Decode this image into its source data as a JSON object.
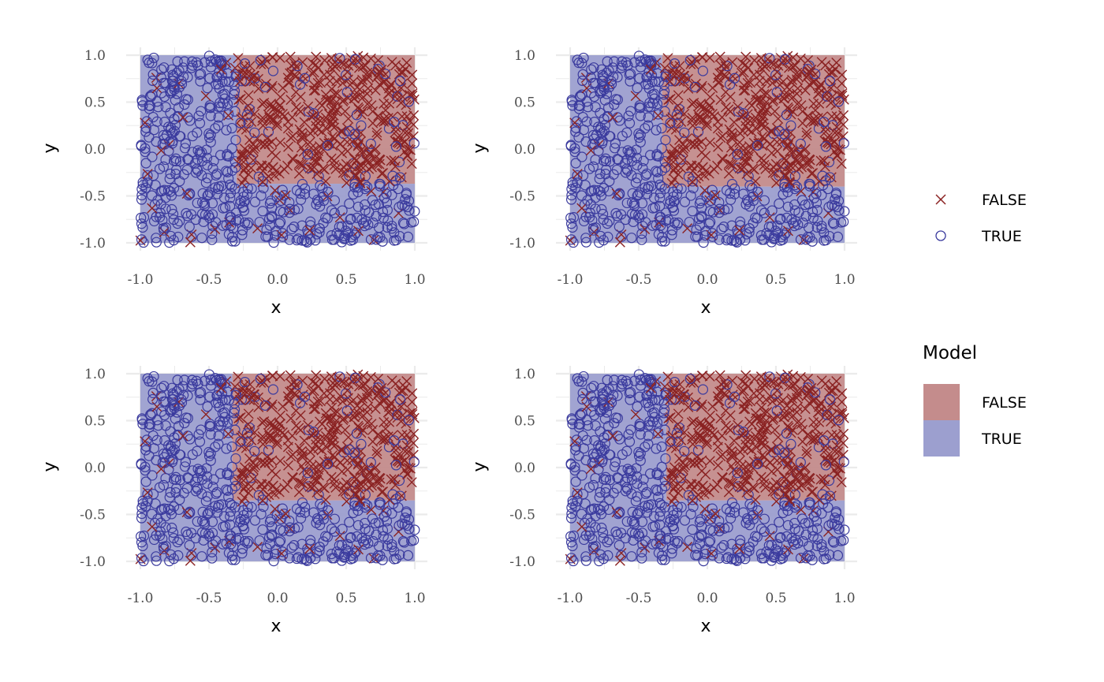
{
  "colors": {
    "false_point": "#8b2323",
    "true_point": "#3b3b9e",
    "false_region": "#c48c8c",
    "true_region": "#9c9fcf",
    "grid": "#ebebeb",
    "tick_text": "#4d4d4d"
  },
  "chart_data": [
    {
      "type": "scatter",
      "panel": "top-left",
      "xlabel": "x",
      "ylabel": "y",
      "xlim": [
        -1,
        1
      ],
      "ylim": [
        -1,
        1
      ],
      "x_ticks": [
        "-1.0",
        "-0.5",
        "0.0",
        "0.5",
        "1.0"
      ],
      "y_ticks": [
        "-1.0",
        "-0.5",
        "0.0",
        "0.5",
        "1.0"
      ],
      "grid": true,
      "series": [
        {
          "name": "FALSE",
          "marker": "x"
        },
        {
          "name": "TRUE",
          "marker": "circle"
        }
      ],
      "regions": [
        {
          "class": "TRUE",
          "x": [
            -1,
            -0.3
          ],
          "y": [
            -1,
            1
          ]
        },
        {
          "class": "TRUE",
          "x": [
            -0.3,
            1
          ],
          "y": [
            -1,
            -0.37
          ]
        },
        {
          "class": "FALSE",
          "x": [
            -0.3,
            1
          ],
          "y": [
            -0.37,
            1
          ]
        }
      ]
    },
    {
      "type": "scatter",
      "panel": "top-right",
      "xlabel": "x",
      "ylabel": "y",
      "xlim": [
        -1,
        1
      ],
      "ylim": [
        -1,
        1
      ],
      "x_ticks": [
        "-1.0",
        "-0.5",
        "0.0",
        "0.5",
        "1.0"
      ],
      "y_ticks": [
        "-1.0",
        "-0.5",
        "0.0",
        "0.5",
        "1.0"
      ],
      "grid": true,
      "series": [
        {
          "name": "FALSE",
          "marker": "x"
        },
        {
          "name": "TRUE",
          "marker": "circle"
        }
      ],
      "regions": [
        {
          "class": "TRUE",
          "x": [
            -1,
            -0.33
          ],
          "y": [
            -1,
            1
          ]
        },
        {
          "class": "TRUE",
          "x": [
            -0.33,
            1
          ],
          "y": [
            -1,
            -0.4
          ]
        },
        {
          "class": "FALSE",
          "x": [
            -0.33,
            1
          ],
          "y": [
            -0.4,
            1
          ]
        }
      ]
    },
    {
      "type": "scatter",
      "panel": "bottom-left",
      "xlabel": "x",
      "ylabel": "y",
      "xlim": [
        -1,
        1
      ],
      "ylim": [
        -1,
        1
      ],
      "x_ticks": [
        "-1.0",
        "-0.5",
        "0.0",
        "0.5",
        "1.0"
      ],
      "y_ticks": [
        "-1.0",
        "-0.5",
        "0.0",
        "0.5",
        "1.0"
      ],
      "grid": true,
      "series": [
        {
          "name": "FALSE",
          "marker": "x"
        },
        {
          "name": "TRUE",
          "marker": "circle"
        }
      ],
      "regions": [
        {
          "class": "TRUE",
          "x": [
            -1,
            -0.33
          ],
          "y": [
            -1,
            1
          ]
        },
        {
          "class": "TRUE",
          "x": [
            -0.33,
            1
          ],
          "y": [
            -1,
            -0.35
          ]
        },
        {
          "class": "FALSE",
          "x": [
            -0.33,
            1
          ],
          "y": [
            -0.35,
            1
          ]
        }
      ]
    },
    {
      "type": "scatter",
      "panel": "bottom-right",
      "xlabel": "x",
      "ylabel": "y",
      "xlim": [
        -1,
        1
      ],
      "ylim": [
        -1,
        1
      ],
      "x_ticks": [
        "-1.0",
        "-0.5",
        "0.0",
        "0.5",
        "1.0"
      ],
      "y_ticks": [
        "-1.0",
        "-0.5",
        "0.0",
        "0.5",
        "1.0"
      ],
      "grid": true,
      "series": [
        {
          "name": "FALSE",
          "marker": "x"
        },
        {
          "name": "TRUE",
          "marker": "circle"
        }
      ],
      "regions": [
        {
          "class": "TRUE",
          "x": [
            -1,
            -0.3
          ],
          "y": [
            -1,
            1
          ]
        },
        {
          "class": "TRUE",
          "x": [
            -0.3,
            1
          ],
          "y": [
            -1,
            -0.35
          ]
        },
        {
          "class": "FALSE",
          "x": [
            -0.3,
            1
          ],
          "y": [
            -0.35,
            1
          ]
        }
      ]
    }
  ],
  "legend_points": {
    "items": [
      {
        "label": "FALSE",
        "icon": "cross-marker-icon"
      },
      {
        "label": "TRUE",
        "icon": "circle-marker-icon"
      }
    ]
  },
  "legend_model": {
    "title": "Model",
    "items": [
      {
        "label": "FALSE"
      },
      {
        "label": "TRUE"
      }
    ]
  }
}
